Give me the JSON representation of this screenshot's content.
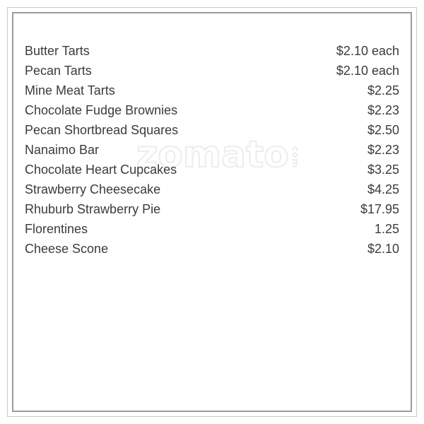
{
  "watermark": {
    "text": "zomato",
    "suffix": "com"
  },
  "menu": {
    "items": [
      {
        "name": "Butter Tarts",
        "price": "$2.10 each"
      },
      {
        "name": "Pecan Tarts",
        "price": "$2.10 each"
      },
      {
        "name": "Mine Meat Tarts",
        "price": "$2.25"
      },
      {
        "name": "Chocolate Fudge Brownies",
        "price": "$2.23"
      },
      {
        "name": "Pecan Shortbread Squares",
        "price": "$2.50"
      },
      {
        "name": "Nanaimo Bar",
        "price": "$2.23"
      },
      {
        "name": "Chocolate Heart Cupcakes",
        "price": "$3.25"
      },
      {
        "name": "Strawberry Cheesecake",
        "price": "$4.25"
      },
      {
        "name": "Rhuburb Strawberry Pie",
        "price": "$17.95"
      },
      {
        "name": "Florentines",
        "price": "1.25"
      },
      {
        "name": "Cheese Scone",
        "price": "$2.10"
      }
    ]
  },
  "colors": {
    "background": "#ffffff",
    "text": "#3b3b3b",
    "border_outer": "#cacaca",
    "border_inner": "#9b9b9b",
    "watermark": "#ececec"
  }
}
